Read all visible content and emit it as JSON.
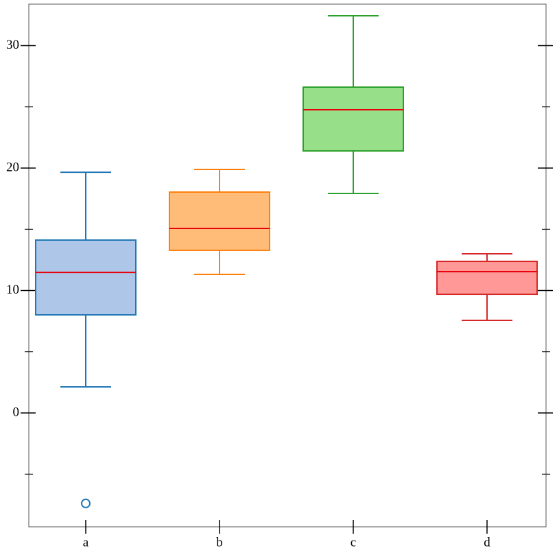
{
  "chart_data": {
    "type": "box",
    "categories": [
      "a",
      "b",
      "c",
      "d"
    ],
    "series": [
      {
        "color": "#1f77b4",
        "fill": "#aec7e8",
        "whislo": 2.13,
        "q1": 8.01,
        "med": 11.48,
        "q3": 14.12,
        "whishi": 19.66,
        "fliers": [
          -7.39
        ]
      },
      {
        "color": "#ff7f0e",
        "fill": "#ffbb78",
        "whislo": 11.32,
        "q1": 13.28,
        "med": 15.07,
        "q3": 18.04,
        "whishi": 19.89,
        "fliers": []
      },
      {
        "color": "#2ca02c",
        "fill": "#98df8a",
        "whislo": 17.93,
        "q1": 21.4,
        "med": 24.76,
        "q3": 26.61,
        "whishi": 32.44,
        "fliers": []
      },
      {
        "color": "#d62728",
        "fill": "#ff9896",
        "whislo": 7.56,
        "q1": 9.69,
        "med": 11.54,
        "q3": 12.38,
        "whishi": 13.0,
        "fliers": []
      }
    ],
    "median_color": "#e8000b",
    "ylim": [
      -9.3,
      33.39
    ],
    "yticks": [
      0,
      10,
      20,
      30
    ],
    "minor_yticks": [
      -5,
      5,
      15,
      25
    ]
  }
}
